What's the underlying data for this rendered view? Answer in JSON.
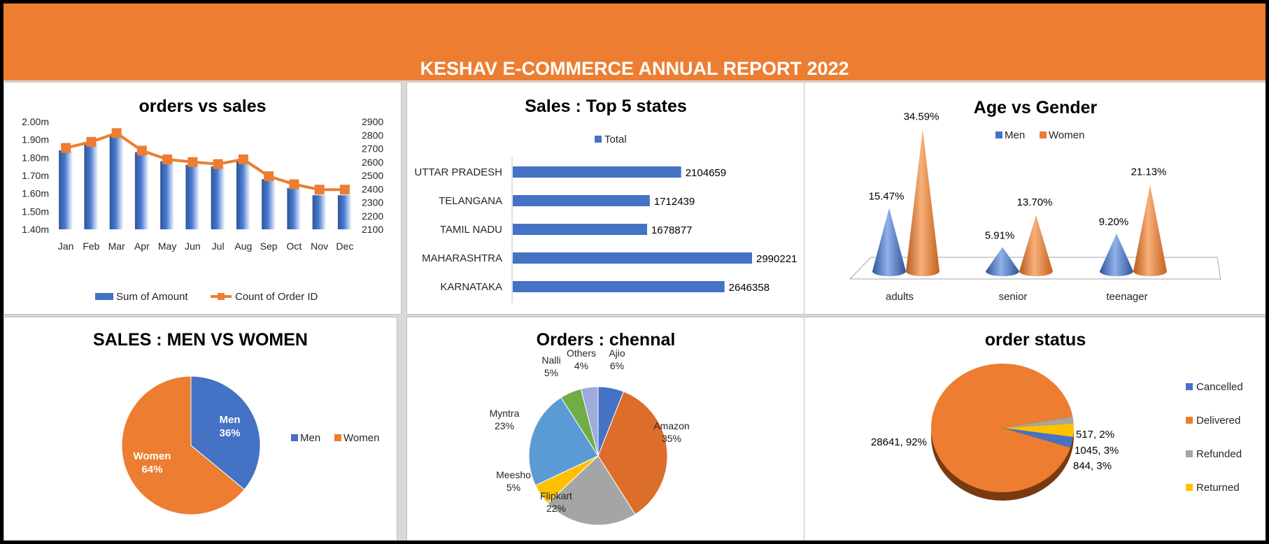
{
  "header": {
    "title": "KESHAV E-COMMERCE ANNUAL REPORT 2022"
  },
  "colors": {
    "banner": "#ed7d31",
    "blue": "#4472c4",
    "orange": "#ed7d31",
    "gray": "#a5a5a5",
    "gold": "#ffc000",
    "green": "#70ad47",
    "lightblue": "#5b9bd5",
    "lavender": "#9dabdd",
    "darkorange": "#dc6d2a"
  },
  "chart_data": [
    {
      "id": "orders_vs_sales",
      "type": "bar",
      "title": "orders vs sales",
      "categories": [
        "Jan",
        "Feb",
        "Mar",
        "Apr",
        "May",
        "Jun",
        "Jul",
        "Aug",
        "Sep",
        "Oct",
        "Nov",
        "Dec"
      ],
      "series": [
        {
          "name": "Sum of Amount",
          "type": "bar",
          "axis": "left",
          "color": "#4472c4",
          "values": [
            1.84,
            1.88,
            1.93,
            1.83,
            1.78,
            1.76,
            1.75,
            1.78,
            1.68,
            1.63,
            1.59,
            1.59
          ]
        },
        {
          "name": "Count of Order ID",
          "type": "line",
          "axis": "right",
          "color": "#ed7d31",
          "values": [
            2705,
            2750,
            2815,
            2685,
            2620,
            2600,
            2585,
            2620,
            2495,
            2435,
            2395,
            2395
          ]
        }
      ],
      "y_left": {
        "min": 1.4,
        "max": 2.0,
        "ticks": [
          "1.40m",
          "1.50m",
          "1.60m",
          "1.70m",
          "1.80m",
          "1.90m",
          "2.00m"
        ]
      },
      "y_right": {
        "min": 2100,
        "max": 2900,
        "ticks": [
          "2100",
          "2200",
          "2300",
          "2400",
          "2500",
          "2600",
          "2700",
          "2800",
          "2900"
        ]
      },
      "legend": "bottom"
    },
    {
      "id": "top5_states",
      "type": "bar",
      "orientation": "horizontal",
      "title": "Sales : Top 5 states",
      "categories": [
        "UTTAR PRADESH",
        "TELANGANA",
        "TAMIL NADU",
        "MAHARASHTRA",
        "KARNATAKA"
      ],
      "series": [
        {
          "name": "Total",
          "color": "#4472c4",
          "values": [
            2104659,
            1712439,
            1678877,
            2990221,
            2646358
          ]
        }
      ],
      "data_labels": [
        "2104659",
        "1712439",
        "1678877",
        "2990221",
        "2646358"
      ],
      "legend": "top"
    },
    {
      "id": "age_vs_gender",
      "type": "bar",
      "style": "3d-cone",
      "title": "Age vs Gender",
      "categories": [
        "adults",
        "senior",
        "teenager"
      ],
      "series": [
        {
          "name": "Men",
          "color": "#4472c4",
          "values": [
            15.47,
            5.91,
            9.2
          ],
          "labels": [
            "15.47%",
            "5.91%",
            "9.20%"
          ]
        },
        {
          "name": "Women",
          "color": "#ed7d31",
          "values": [
            34.59,
            13.7,
            21.13
          ],
          "labels": [
            "34.59%",
            "13.70%",
            "21.13%"
          ]
        }
      ],
      "legend": "top"
    },
    {
      "id": "sales_men_women",
      "type": "pie",
      "title": "SALES : MEN VS WOMEN",
      "slices": [
        {
          "name": "Men",
          "value": 36,
          "label": "36%",
          "color": "#4472c4"
        },
        {
          "name": "Women",
          "value": 64,
          "label": "64%",
          "color": "#ed7d31"
        }
      ],
      "legend": "right"
    },
    {
      "id": "orders_chennal",
      "type": "pie",
      "title": "Orders : chennal",
      "slices": [
        {
          "name": "Ajio",
          "value": 6,
          "label": "6%",
          "color": "#4472c4"
        },
        {
          "name": "Amazon",
          "value": 35,
          "label": "35%",
          "color": "#dc6d2a"
        },
        {
          "name": "Flipkart",
          "value": 22,
          "label": "22%",
          "color": "#a5a5a5"
        },
        {
          "name": "Meesho",
          "value": 5,
          "label": "5%",
          "color": "#ffc000"
        },
        {
          "name": "Myntra",
          "value": 23,
          "label": "23%",
          "color": "#5b9bd5"
        },
        {
          "name": "Nalli",
          "value": 5,
          "label": "5%",
          "color": "#70ad47"
        },
        {
          "name": "Others",
          "value": 4,
          "label": "4%",
          "color": "#9dabdd"
        }
      ]
    },
    {
      "id": "order_status",
      "type": "pie",
      "style": "3d",
      "title": "order status",
      "slices": [
        {
          "name": "Cancelled",
          "value": 844,
          "label": "844, 3%",
          "color": "#4472c4"
        },
        {
          "name": "Delivered",
          "value": 28641,
          "label": "28641, 92%",
          "color": "#ed7d31"
        },
        {
          "name": "Refunded",
          "value": 517,
          "label": "517, 2%",
          "color": "#a5a5a5"
        },
        {
          "name": "Returned",
          "value": 1045,
          "label": "1045, 3%",
          "color": "#ffc000"
        }
      ],
      "legend": "right"
    }
  ]
}
